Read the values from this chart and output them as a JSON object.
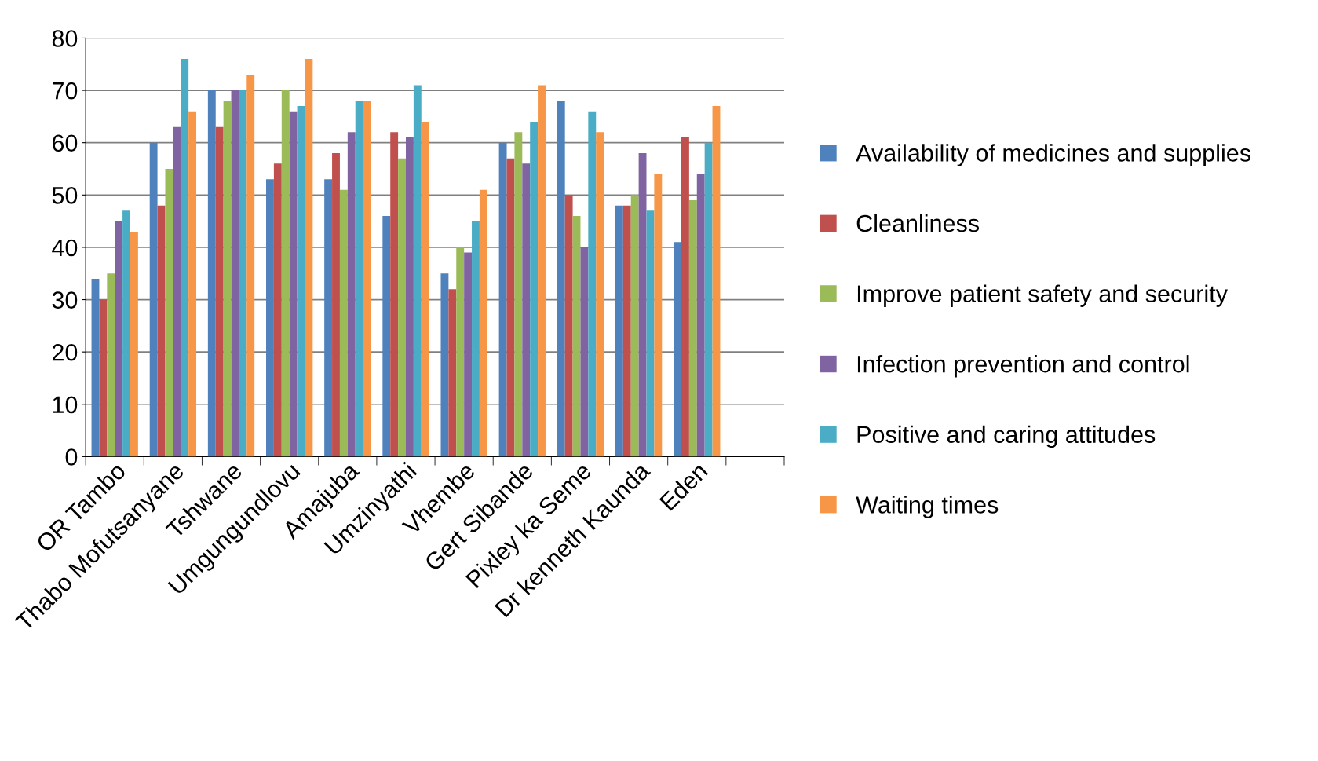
{
  "chart_data": {
    "type": "bar",
    "categories": [
      "OR Tambo",
      "Thabo Mofutsanyane",
      "Tshwane",
      "Umgungundlovu",
      "Amajuba",
      "Umzinyathi",
      "Vhembe",
      "Gert Sibande",
      "Pixley ka Seme",
      "Dr kenneth Kaunda",
      "Eden",
      null
    ],
    "series": [
      {
        "name": "Availability of medicines and supplies",
        "color": "#4f81bd",
        "values": [
          34,
          60,
          70,
          53,
          53,
          46,
          35,
          60,
          68,
          48,
          41,
          null
        ]
      },
      {
        "name": "Cleanliness",
        "color": "#c0504d",
        "values": [
          30,
          48,
          63,
          56,
          58,
          62,
          32,
          57,
          50,
          48,
          61,
          null
        ]
      },
      {
        "name": "Improve patient safety and security",
        "color": "#9bbb59",
        "values": [
          35,
          55,
          68,
          70,
          51,
          57,
          40,
          62,
          46,
          50,
          49,
          null
        ]
      },
      {
        "name": "Infection prevention and control",
        "color": "#8064a2",
        "values": [
          45,
          63,
          70,
          66,
          62,
          61,
          39,
          56,
          40,
          58,
          54,
          null
        ]
      },
      {
        "name": "Positive and caring attitudes",
        "color": "#4bacc6",
        "values": [
          47,
          76,
          70,
          67,
          68,
          71,
          45,
          64,
          66,
          47,
          60,
          null
        ]
      },
      {
        "name": "Waiting times",
        "color": "#f79646",
        "values": [
          43,
          66,
          73,
          76,
          68,
          64,
          51,
          71,
          62,
          54,
          67,
          null
        ]
      }
    ],
    "ylim": [
      0,
      80
    ],
    "yticks": [
      0,
      10,
      20,
      30,
      40,
      50,
      60,
      70,
      80
    ],
    "grid": "y",
    "legend": "right"
  }
}
